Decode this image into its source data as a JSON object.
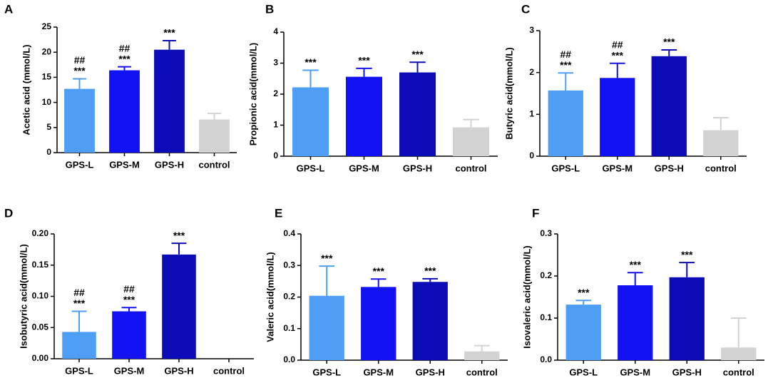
{
  "chart_data": [
    {
      "type": "bar",
      "panel": "A",
      "ylabel": "Acetic acid (mmol/L)",
      "categories": [
        "GPS-L",
        "GPS-M",
        "GPS-H",
        "control"
      ],
      "values": [
        12.7,
        16.4,
        20.5,
        6.6
      ],
      "errors": [
        2.0,
        0.7,
        1.8,
        1.2
      ],
      "colors": [
        "#4f9ef5",
        "#1212f2",
        "#0c0cb6",
        "#d3d3d3"
      ],
      "annotations": [
        [
          "##",
          "***"
        ],
        [
          "##",
          "***"
        ],
        [
          "***"
        ],
        null
      ],
      "ylim": [
        0,
        25
      ],
      "yticks": [
        0,
        5,
        10,
        15,
        20,
        25
      ]
    },
    {
      "type": "bar",
      "panel": "B",
      "ylabel": "Propionic acid(mmol/L)",
      "categories": [
        "GPS-L",
        "GPS-M",
        "GPS-H",
        "control"
      ],
      "values": [
        2.22,
        2.56,
        2.7,
        0.93
      ],
      "errors": [
        0.55,
        0.27,
        0.33,
        0.25
      ],
      "colors": [
        "#4f9ef5",
        "#1212f2",
        "#0c0cb6",
        "#d3d3d3"
      ],
      "annotations": [
        [
          "***"
        ],
        [
          "***"
        ],
        [
          "***"
        ],
        null
      ],
      "ylim": [
        0,
        4
      ],
      "yticks": [
        0,
        1,
        2,
        3,
        4
      ]
    },
    {
      "type": "bar",
      "panel": "C",
      "ylabel": "Butyric acid(mmol/L)",
      "categories": [
        "GPS-L",
        "GPS-M",
        "GPS-H",
        "control"
      ],
      "values": [
        1.57,
        1.87,
        2.39,
        0.62
      ],
      "errors": [
        0.42,
        0.35,
        0.15,
        0.3
      ],
      "colors": [
        "#4f9ef5",
        "#1212f2",
        "#0c0cb6",
        "#d3d3d3"
      ],
      "annotations": [
        [
          "##",
          "***"
        ],
        [
          "##",
          "***"
        ],
        [
          "***"
        ],
        null
      ],
      "ylim": [
        0,
        3
      ],
      "yticks": [
        0,
        1,
        2,
        3
      ]
    },
    {
      "type": "bar",
      "panel": "D",
      "ylabel": "Isobutyric acid(mmol/L)",
      "categories": [
        "GPS-L",
        "GPS-M",
        "GPS-H",
        "control"
      ],
      "values": [
        0.043,
        0.076,
        0.167,
        0
      ],
      "errors": [
        0.033,
        0.006,
        0.018,
        0
      ],
      "colors": [
        "#4f9ef5",
        "#1212f2",
        "#0c0cb6",
        "#d3d3d3"
      ],
      "annotations": [
        [
          "##",
          "***"
        ],
        [
          "##",
          "***"
        ],
        [
          "***"
        ],
        null
      ],
      "ylim": [
        0,
        0.2
      ],
      "yticks": [
        {
          "value": 0,
          "label": "0.00"
        },
        0.05,
        {
          "value": 0.1,
          "label": "0.10"
        },
        0.15,
        {
          "value": 0.2,
          "label": "0.20"
        }
      ]
    },
    {
      "type": "bar",
      "panel": "E",
      "ylabel": "Valeric acid(mmol/L)",
      "categories": [
        "GPS-L",
        "GPS-M",
        "GPS-H",
        "control"
      ],
      "values": [
        0.204,
        0.232,
        0.248,
        0.028
      ],
      "errors": [
        0.094,
        0.025,
        0.01,
        0.018
      ],
      "colors": [
        "#4f9ef5",
        "#1212f2",
        "#0c0cb6",
        "#d3d3d3"
      ],
      "annotations": [
        [
          "***"
        ],
        [
          "***"
        ],
        [
          "***"
        ],
        null
      ],
      "ylim": [
        0,
        0.4
      ],
      "yticks": [
        {
          "value": 0,
          "label": "0.0"
        },
        0.1,
        0.2,
        0.3,
        0.4
      ]
    },
    {
      "type": "bar",
      "panel": "F",
      "ylabel": "Isovaleric acid(mmol/L)",
      "categories": [
        "GPS-L",
        "GPS-M",
        "GPS-H",
        "control"
      ],
      "values": [
        0.132,
        0.178,
        0.197,
        0.03
      ],
      "errors": [
        0.01,
        0.03,
        0.035,
        0.07
      ],
      "colors": [
        "#4f9ef5",
        "#1212f2",
        "#0c0cb6",
        "#d3d3d3"
      ],
      "annotations": [
        [
          "***"
        ],
        [
          "***"
        ],
        [
          "***"
        ],
        null
      ],
      "ylim": [
        0,
        0.3
      ],
      "yticks": [
        {
          "value": 0,
          "label": "0.0"
        },
        0.1,
        0.2,
        0.3
      ]
    }
  ]
}
